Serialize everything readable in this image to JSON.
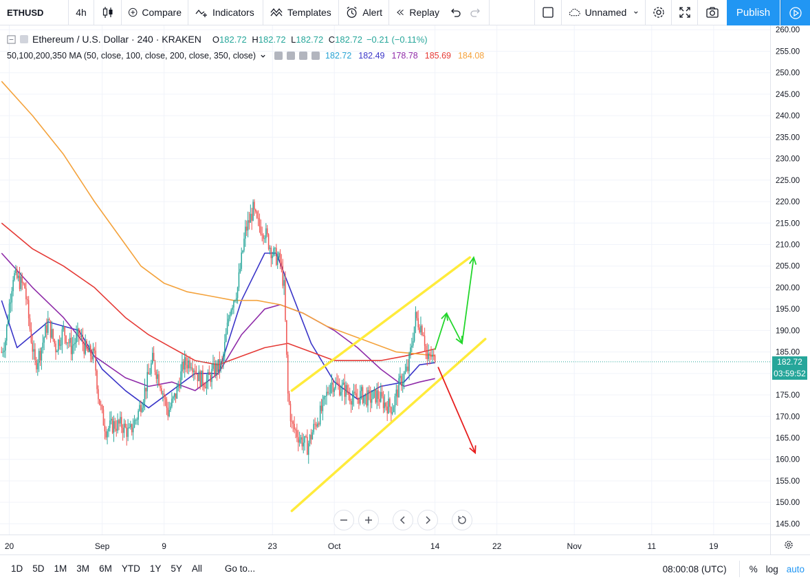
{
  "toolbar": {
    "symbol": "ETHUSD",
    "interval": "4h",
    "compare": "Compare",
    "indicators": "Indicators",
    "templates": "Templates",
    "alert": "Alert",
    "replay": "Replay",
    "layout_name": "Unnamed",
    "publish": "Publish"
  },
  "legend": {
    "title": "Ethereum / U.S. Dollar · 240 · KRAKEN",
    "open_k": "O",
    "open_v": "182.72",
    "high_k": "H",
    "high_v": "182.72",
    "low_k": "L",
    "low_v": "182.72",
    "close_k": "C",
    "close_v": "182.72",
    "change": "−0.21 (−0.11%)",
    "ma_label": "50,100,200,350 MA (50, close, 100, close, 200, close, 350, close)",
    "ma_values": [
      {
        "value": "182.72",
        "color": "#26a2d3"
      },
      {
        "value": "182.49",
        "color": "#3a35c8"
      },
      {
        "value": "178.78",
        "color": "#8e2aa8"
      },
      {
        "value": "185.69",
        "color": "#e53935"
      },
      {
        "value": "184.08",
        "color": "#f4a23b"
      }
    ]
  },
  "price_tags": {
    "last_price": "182.72",
    "countdown": "03:59:52",
    "color": "#26a69a"
  },
  "bottom": {
    "ranges": [
      "1D",
      "5D",
      "1M",
      "3M",
      "6M",
      "YTD",
      "1Y",
      "5Y",
      "All"
    ],
    "goto": "Go to...",
    "time": "08:00:08 (UTC)",
    "percent": "%",
    "log": "log",
    "auto": "auto"
  },
  "chart_data": {
    "type": "candlestick",
    "yaxis": {
      "ticks": [
        145,
        150,
        155,
        160,
        165,
        170,
        175,
        180,
        185,
        190,
        195,
        200,
        205,
        210,
        215,
        220,
        225,
        230,
        235,
        240,
        245,
        250,
        255,
        260
      ],
      "range": [
        142.5,
        261
      ]
    },
    "xaxis": {
      "ticks": [
        {
          "label": "20",
          "day": -12
        },
        {
          "label": "Sep",
          "day": 0
        },
        {
          "label": "9",
          "day": 8
        },
        {
          "label": "23",
          "day": 22
        },
        {
          "label": "Oct",
          "day": 30
        },
        {
          "label": "14",
          "day": 43
        },
        {
          "label": "22",
          "day": 51
        },
        {
          "label": "Nov",
          "day": 61
        },
        {
          "label": "11",
          "day": 71
        },
        {
          "label": "19",
          "day": 79
        }
      ],
      "range": [
        -13.2,
        86.3
      ]
    },
    "price_path": [
      [
        -13,
        185
      ],
      [
        -12.5,
        188
      ],
      [
        -12,
        196
      ],
      [
        -11.5,
        203
      ],
      [
        -10,
        200
      ],
      [
        -9.3,
        190
      ],
      [
        -8.7,
        182
      ],
      [
        -8,
        185
      ],
      [
        -7,
        192
      ],
      [
        -6,
        186
      ],
      [
        -5,
        190
      ],
      [
        -4,
        186
      ],
      [
        -3,
        189
      ],
      [
        -2,
        185
      ],
      [
        -1,
        184
      ],
      [
        -0.5,
        175
      ],
      [
        0,
        170
      ],
      [
        0.5,
        167
      ],
      [
        1.5,
        168
      ],
      [
        2.5,
        168
      ],
      [
        3.5,
        166
      ],
      [
        4.5,
        170
      ],
      [
        5.5,
        176
      ],
      [
        6.5,
        183
      ],
      [
        7.5,
        178
      ],
      [
        8.5,
        171
      ],
      [
        9.5,
        175
      ],
      [
        10.5,
        182
      ],
      [
        11.5,
        183
      ],
      [
        12.5,
        179
      ],
      [
        13.5,
        178
      ],
      [
        14.5,
        181
      ],
      [
        15.5,
        182
      ],
      [
        16.5,
        195
      ],
      [
        17.5,
        200
      ],
      [
        18.5,
        213
      ],
      [
        19.5,
        218
      ],
      [
        20,
        215
      ],
      [
        21,
        213
      ],
      [
        22,
        208
      ],
      [
        23,
        206
      ],
      [
        23.5,
        200
      ],
      [
        24,
        175
      ],
      [
        24.5,
        168
      ],
      [
        25.5,
        165
      ],
      [
        26.5,
        163
      ],
      [
        27.5,
        168
      ],
      [
        28.5,
        172
      ],
      [
        29.5,
        178
      ],
      [
        30.5,
        177
      ],
      [
        31.5,
        176
      ],
      [
        32.5,
        174
      ],
      [
        33.5,
        175
      ],
      [
        34.5,
        174
      ],
      [
        35.5,
        175
      ],
      [
        36.5,
        173
      ],
      [
        37.5,
        172
      ],
      [
        38.5,
        178
      ],
      [
        39.5,
        181
      ],
      [
        40.5,
        193
      ],
      [
        41.5,
        190
      ],
      [
        42,
        183
      ],
      [
        42.5,
        184
      ],
      [
        43,
        182.72
      ]
    ],
    "moving_averages": [
      {
        "name": "MA 50",
        "color": "#3a35c8",
        "points": [
          [
            -13,
            197
          ],
          [
            -11,
            186
          ],
          [
            -7,
            192
          ],
          [
            -3,
            190
          ],
          [
            0,
            181
          ],
          [
            3,
            176
          ],
          [
            6,
            172
          ],
          [
            9,
            176
          ],
          [
            12,
            180
          ],
          [
            15,
            180
          ],
          [
            18,
            197
          ],
          [
            21,
            208
          ],
          [
            22.5,
            208
          ],
          [
            24,
            201
          ],
          [
            27,
            187
          ],
          [
            30,
            178
          ],
          [
            33,
            174
          ],
          [
            36,
            177
          ],
          [
            39,
            178
          ],
          [
            41,
            182
          ],
          [
            43,
            182.5
          ]
        ]
      },
      {
        "name": "MA 100",
        "color": "#8e2aa8",
        "points": [
          [
            -13,
            208
          ],
          [
            -9,
            200
          ],
          [
            -5,
            193
          ],
          [
            -1,
            184
          ],
          [
            3,
            179
          ],
          [
            6,
            177
          ],
          [
            9,
            178
          ],
          [
            12,
            176
          ],
          [
            15,
            180
          ],
          [
            18,
            189
          ],
          [
            21,
            195
          ],
          [
            23,
            196
          ],
          [
            26,
            194
          ],
          [
            30,
            190
          ],
          [
            33,
            186
          ],
          [
            36,
            181
          ],
          [
            39,
            177
          ],
          [
            41,
            178
          ],
          [
            43,
            178.8
          ]
        ]
      },
      {
        "name": "MA 200",
        "color": "#e53935",
        "points": [
          [
            -13,
            215
          ],
          [
            -9,
            209
          ],
          [
            -5,
            205
          ],
          [
            -1,
            200
          ],
          [
            3,
            193
          ],
          [
            6,
            189
          ],
          [
            9,
            186
          ],
          [
            12,
            183
          ],
          [
            15,
            182
          ],
          [
            18,
            184
          ],
          [
            21,
            186
          ],
          [
            24,
            187
          ],
          [
            27,
            185
          ],
          [
            30,
            183
          ],
          [
            33,
            183
          ],
          [
            36,
            183
          ],
          [
            39,
            184
          ],
          [
            43,
            185.7
          ]
        ]
      },
      {
        "name": "MA 350",
        "color": "#f4a23b",
        "points": [
          [
            -13,
            248
          ],
          [
            -9,
            240
          ],
          [
            -5,
            231
          ],
          [
            -1,
            220
          ],
          [
            3,
            210
          ],
          [
            5,
            205
          ],
          [
            8,
            201
          ],
          [
            11,
            199
          ],
          [
            14,
            198
          ],
          [
            17,
            197
          ],
          [
            20,
            197
          ],
          [
            23,
            196
          ],
          [
            26,
            194
          ],
          [
            29,
            191
          ],
          [
            32,
            189
          ],
          [
            35,
            187
          ],
          [
            38,
            185
          ],
          [
            41,
            184.5
          ],
          [
            43,
            184.1
          ]
        ]
      }
    ],
    "channel_lines": [
      {
        "color": "#ffeb3b",
        "from": [
          24.5,
          176
        ],
        "to": [
          47.5,
          207
        ]
      },
      {
        "color": "#ffeb3b",
        "from": [
          24.5,
          148
        ],
        "to": [
          49.5,
          188
        ]
      }
    ],
    "arrows": [
      {
        "color": "#22d62b",
        "points": [
          [
            43,
            185.5
          ],
          [
            44.5,
            194
          ],
          [
            46.5,
            187
          ],
          [
            48,
            207
          ]
        ]
      },
      {
        "color": "#e71e1e",
        "points": [
          [
            43.4,
            181.5
          ],
          [
            48.2,
            161.5
          ]
        ]
      }
    ],
    "last_price": 182.72
  }
}
